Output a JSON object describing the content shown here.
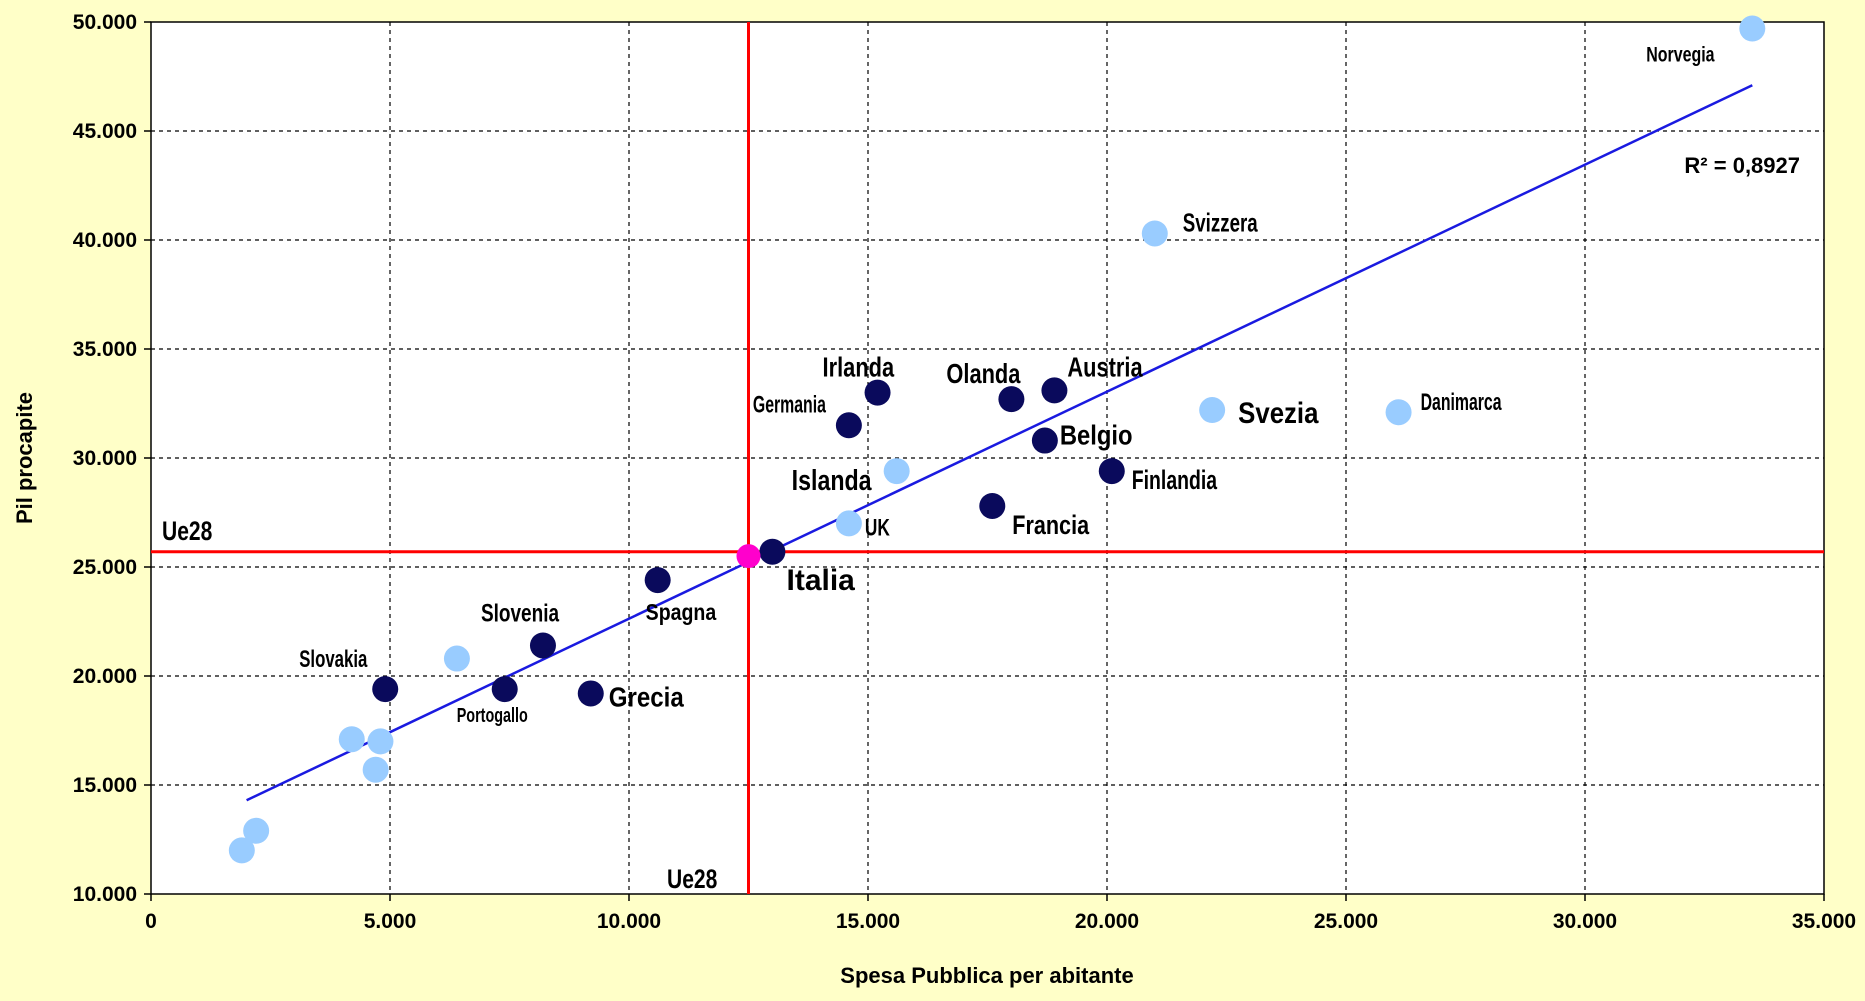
{
  "chart_data": {
    "type": "scatter",
    "title": "",
    "xlabel": "Spesa Pubblica per abitante",
    "ylabel": "Pil procapite",
    "xlim": [
      0,
      35000
    ],
    "ylim": [
      10000,
      50000
    ],
    "x_ticks": [
      "0",
      "5.000",
      "10.000",
      "15.000",
      "20.000",
      "25.000",
      "30.000",
      "35.000"
    ],
    "y_ticks": [
      "10.000",
      "15.000",
      "20.000",
      "25.000",
      "30.000",
      "35.000",
      "40.000",
      "45.000",
      "50.000"
    ],
    "grid": true,
    "colors": {
      "background": "#FFFFC8",
      "plot_area": "#FFFFFF",
      "dark_points": "#0A0A5C",
      "light_points": "#99CCFF",
      "italia_point": "#FF00CC",
      "italia_label": "#007A00",
      "trend_line": "#1A1AE0",
      "reference_lines": "#FF0000",
      "ue28_label": "#FF00CC",
      "r2_label": "#1A1AE0"
    },
    "series": [
      {
        "color": "dark",
        "points": [
          {
            "label": "Irlanda",
            "x": 15200,
            "y": 33000
          },
          {
            "label": "Germania",
            "x": 14600,
            "y": 31500
          },
          {
            "label": "Olanda",
            "x": 18000,
            "y": 32700
          },
          {
            "label": "Austria",
            "x": 18900,
            "y": 33100
          },
          {
            "label": "Belgio",
            "x": 18700,
            "y": 30800
          },
          {
            "label": "Finlandia",
            "x": 20100,
            "y": 29400
          },
          {
            "label": "Francia",
            "x": 17600,
            "y": 27800
          },
          {
            "label": "",
            "x": 13000,
            "y": 25700
          },
          {
            "label": "Spagna",
            "x": 10600,
            "y": 24400
          },
          {
            "label": "Slovenia",
            "x": 8200,
            "y": 21400
          },
          {
            "label": "Slovakia",
            "x": 4900,
            "y": 19400
          },
          {
            "label": "Portogallo",
            "x": 7400,
            "y": 19400
          },
          {
            "label": "Grecia",
            "x": 9200,
            "y": 19200
          }
        ]
      },
      {
        "color": "light",
        "points": [
          {
            "label": "Norvegia",
            "x": 33500,
            "y": 49700
          },
          {
            "label": "Svizzera",
            "x": 21000,
            "y": 40300
          },
          {
            "label": "Svezia",
            "x": 22200,
            "y": 32200
          },
          {
            "label": "Danimarca",
            "x": 26100,
            "y": 32100
          },
          {
            "label": "Islanda",
            "x": 15600,
            "y": 29400
          },
          {
            "label": "UK",
            "x": 14600,
            "y": 27000
          },
          {
            "label": "",
            "x": 6400,
            "y": 20800
          },
          {
            "label": "",
            "x": 4200,
            "y": 17100
          },
          {
            "label": "",
            "x": 4800,
            "y": 17000
          },
          {
            "label": "",
            "x": 4700,
            "y": 15700
          },
          {
            "label": "",
            "x": 2200,
            "y": 12900
          },
          {
            "label": "",
            "x": 1900,
            "y": 12000
          }
        ]
      },
      {
        "color": "italia",
        "points": [
          {
            "label": "Italia",
            "x": 12500,
            "y": 25500
          }
        ]
      }
    ],
    "trendline": {
      "x": [
        2000,
        33500
      ],
      "y": [
        14300,
        47100
      ],
      "label": "R² = 0,8927"
    },
    "reference": {
      "x": 12500,
      "y": 25700,
      "label_x": "Ue28",
      "label_y": "Ue28"
    }
  }
}
